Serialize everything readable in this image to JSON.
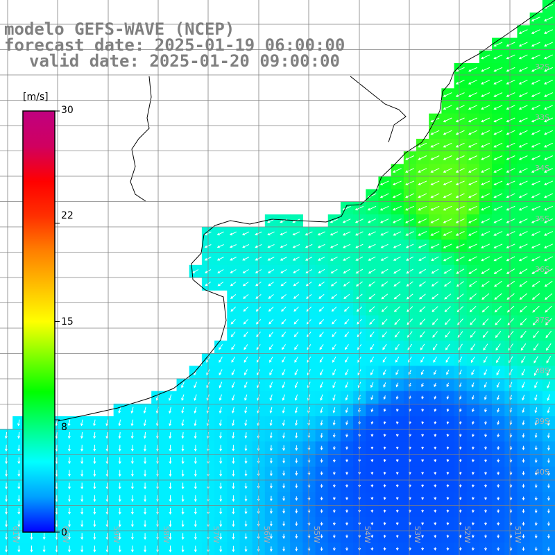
{
  "title": {
    "line1": "modelo GEFS-WAVE (NCEP)",
    "line2": "forecast date: 2025-01-19 06:00:00",
    "line3": "valid date: 2025-01-20 09:00:00"
  },
  "colorbar": {
    "unit": "[m/s]",
    "min": 0,
    "max": 30,
    "tick_labels": [
      "30",
      "22",
      "15",
      "8",
      "0"
    ],
    "tick_values": [
      30,
      22,
      15,
      8,
      0
    ],
    "colors": [
      "#0000ff",
      "#00a0ff",
      "#00ffff",
      "#00ff80",
      "#00ff00",
      "#80ff00",
      "#ffff00",
      "#ffc000",
      "#ff8000",
      "#ff3000",
      "#ff0000",
      "#d00060",
      "#c00080"
    ]
  },
  "axes": {
    "lat_labels": [
      "32S",
      "33S",
      "34S",
      "35S",
      "36S",
      "37S",
      "38S",
      "39S",
      "40S"
    ],
    "lon_labels": [
      "61W",
      "60W",
      "59W",
      "58W",
      "57W",
      "56W",
      "55W",
      "54W",
      "53W",
      "52W",
      "51W"
    ],
    "lat_range": [
      -41.5,
      -30.5
    ],
    "lon_range": [
      -61.5,
      -50.5
    ]
  },
  "chart_data": {
    "type": "heatmap",
    "variable": "wind speed",
    "unit": "m/s",
    "grid_resolution_deg": 0.25,
    "region": {
      "lon": [
        -61.5,
        -50.5
      ],
      "lat": [
        -41.5,
        -30.5
      ]
    },
    "field_description_points": [
      {
        "lon": -52.5,
        "lat": -34.5,
        "speed": 14
      },
      {
        "lon": -51.5,
        "lat": -35.0,
        "speed": 12
      },
      {
        "lon": -53.5,
        "lat": -36.0,
        "speed": 10
      },
      {
        "lon": -55.0,
        "lat": -37.5,
        "speed": 8
      },
      {
        "lon": -53.5,
        "lat": -39.5,
        "speed": 3
      },
      {
        "lon": -59.0,
        "lat": -40.0,
        "speed": 8
      }
    ]
  }
}
